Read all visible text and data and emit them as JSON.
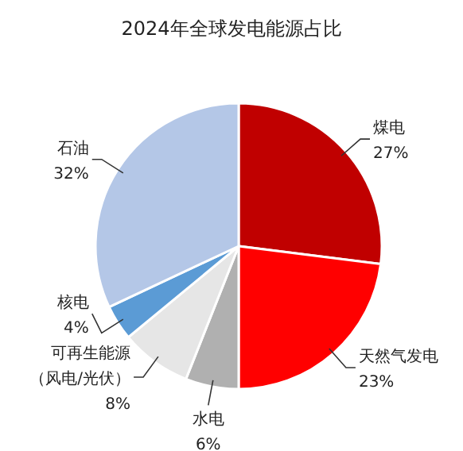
{
  "chart_data": {
    "type": "pie",
    "title": "2024年全球发电能源占比",
    "categories": [
      "煤电",
      "天然气发电",
      "水电",
      "可再生能源（风电/光伏）",
      "核电",
      "石油"
    ],
    "values": [
      27,
      23,
      6,
      8,
      4,
      32
    ],
    "value_labels": [
      "27%",
      "23%",
      "6%",
      "8%",
      "4%",
      "32%"
    ],
    "colors": [
      "#c00000",
      "#ff0000",
      "#b0b0b0",
      "#e6e6e6",
      "#5b9bd5",
      "#b4c7e7"
    ]
  }
}
